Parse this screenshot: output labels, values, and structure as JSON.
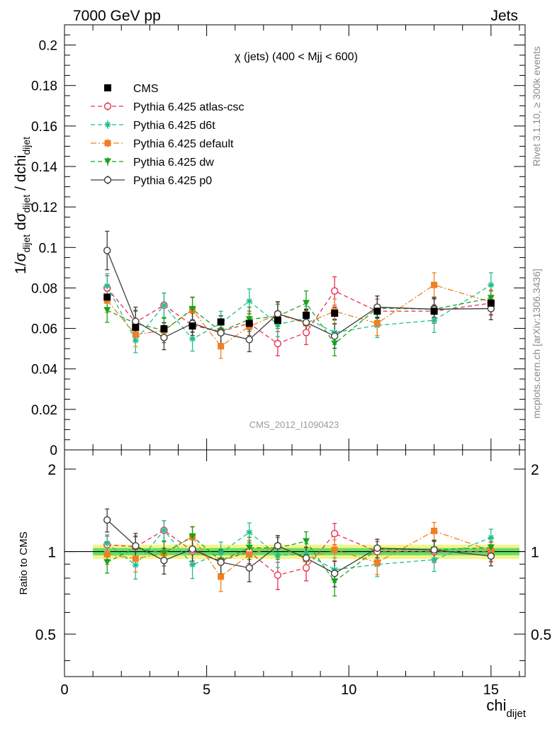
{
  "header": {
    "left": "7000 GeV pp",
    "right": "Jets"
  },
  "side_labels": {
    "rivet": "Rivet 3.1.10, ≥ 300k events",
    "mcplots": "mcplots.cern.ch [arXiv:1306.3436]"
  },
  "chart_data": {
    "type": "scatter",
    "title": "χ (jets) (400 < Mjj <  600)",
    "analysis_label": "CMS_2012_I1090423",
    "xlabel": "chi",
    "xlabel_sub": "dijet",
    "ylabel_top": "1/σ_dijet dσ_dijet / dchi_dijet",
    "ylabel_bottom": "Ratio to CMS",
    "xlim": [
      0,
      16.2
    ],
    "ylim_top": [
      0,
      0.21
    ],
    "ylim_ratio": [
      0.35,
      2.35
    ],
    "ratio_scale": "log",
    "x_ticks": [
      "0",
      "5",
      "10",
      "15"
    ],
    "y_ticks_top": [
      "0",
      "0.02",
      "0.04",
      "0.06",
      "0.08",
      "0.1",
      "0.12",
      "0.14",
      "0.16",
      "0.18",
      "0.2"
    ],
    "y_ticks_ratio": [
      "0.5",
      "1",
      "2"
    ],
    "legend_position": "top-left",
    "x": [
      1.5,
      2.5,
      3.5,
      4.5,
      5.5,
      6.5,
      7.5,
      8.5,
      9.5,
      11,
      13,
      15
    ],
    "reference": {
      "name": "CMS",
      "color": "#000000",
      "marker": "square",
      "values": [
        0.0755,
        0.0605,
        0.0598,
        0.0612,
        0.0632,
        0.0625,
        0.064,
        0.0665,
        0.0675,
        0.0685,
        0.0685,
        0.0725
      ],
      "errors": [
        0.003,
        0.003,
        0.003,
        0.003,
        0.003,
        0.003,
        0.003,
        0.003,
        0.003,
        0.003,
        0.003,
        0.003
      ],
      "band_inner": 0.03,
      "band_outer": 0.06,
      "band_inner_color": "#66dd66",
      "band_outer_color": "#f4f48c"
    },
    "series": [
      {
        "name": "Pythia 6.425 atlas-csc",
        "color": "#e8304f",
        "marker": "open-circle",
        "dash": "6,4",
        "values": [
          0.08,
          0.063,
          0.0715,
          0.0615,
          0.0585,
          0.0625,
          0.0525,
          0.058,
          0.0785,
          0.0685,
          0.0685,
          0.0725
        ],
        "errors": [
          0.006,
          0.006,
          0.006,
          0.006,
          0.006,
          0.006,
          0.006,
          0.006,
          0.007,
          0.006,
          0.006,
          0.006
        ]
      },
      {
        "name": "Pythia 6.425 d6t",
        "color": "#1fbe8c",
        "marker": "star",
        "dash": "6,4",
        "values": [
          0.081,
          0.054,
          0.0715,
          0.0548,
          0.0625,
          0.0735,
          0.062,
          0.065,
          0.058,
          0.0615,
          0.064,
          0.0815
        ],
        "errors": [
          0.006,
          0.006,
          0.006,
          0.006,
          0.006,
          0.006,
          0.006,
          0.006,
          0.006,
          0.006,
          0.006,
          0.006
        ]
      },
      {
        "name": "Pythia 6.425 default",
        "color": "#f07f22",
        "marker": "square",
        "dash": "8,3,2,3",
        "values": [
          0.0738,
          0.057,
          0.059,
          0.0692,
          0.0512,
          0.061,
          0.067,
          0.0625,
          0.0685,
          0.0625,
          0.0815,
          0.073
        ],
        "errors": [
          0.006,
          0.006,
          0.006,
          0.006,
          0.006,
          0.006,
          0.006,
          0.006,
          0.006,
          0.006,
          0.006,
          0.006
        ]
      },
      {
        "name": "Pythia 6.425 dw",
        "color": "#17a417",
        "marker": "down-triangle",
        "dash": "6,4",
        "values": [
          0.069,
          0.0625,
          0.059,
          0.0695,
          0.0585,
          0.0645,
          0.066,
          0.0725,
          0.0525,
          0.07,
          0.0695,
          0.075
        ],
        "errors": [
          0.006,
          0.006,
          0.006,
          0.006,
          0.006,
          0.006,
          0.006,
          0.006,
          0.006,
          0.006,
          0.006,
          0.006
        ]
      },
      {
        "name": "Pythia 6.425 p0",
        "color": "#3d3d3d",
        "marker": "open-circle",
        "dash": "",
        "values": [
          0.0985,
          0.0635,
          0.0555,
          0.0625,
          0.0578,
          0.0545,
          0.0672,
          0.063,
          0.0562,
          0.0705,
          0.0695,
          0.0698
        ],
        "errors": [
          0.0095,
          0.007,
          0.006,
          0.006,
          0.006,
          0.006,
          0.006,
          0.006,
          0.006,
          0.0055,
          0.0055,
          0.0055
        ]
      }
    ]
  }
}
